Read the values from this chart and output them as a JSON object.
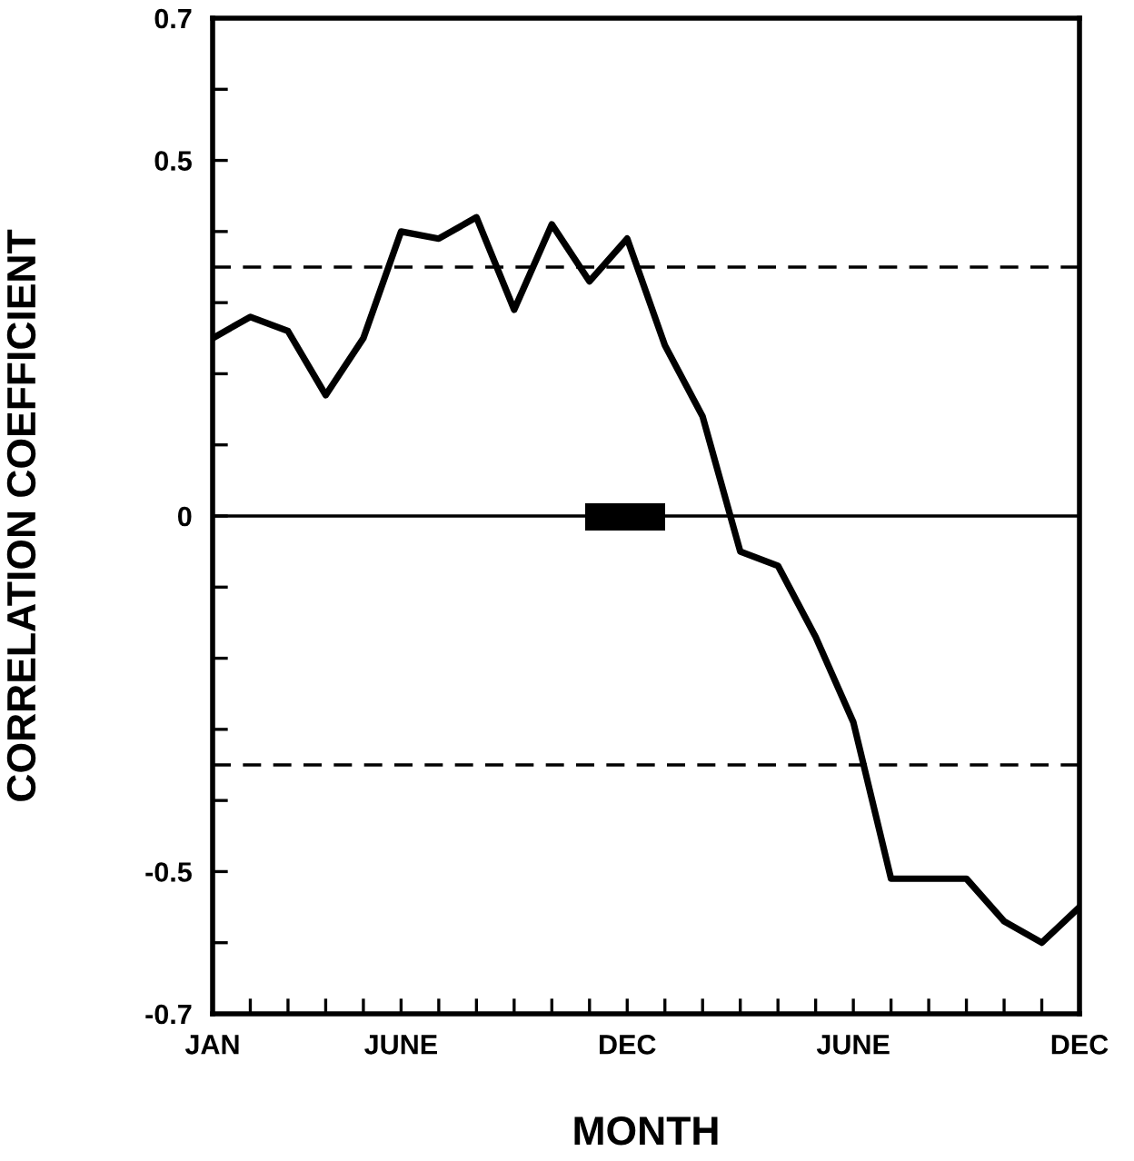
{
  "chart_data": {
    "type": "line",
    "xlabel": "MONTH",
    "ylabel": "CORRELATION COEFFICIENT",
    "categories": [
      "JAN",
      null,
      null,
      null,
      null,
      "JUNE",
      null,
      null,
      null,
      null,
      null,
      "DEC",
      null,
      null,
      null,
      null,
      null,
      "JUNE",
      null,
      null,
      null,
      null,
      null,
      "DEC"
    ],
    "series": [
      {
        "color": "#000000",
        "values": [
          0.25,
          0.28,
          0.26,
          0.17,
          0.25,
          0.4,
          0.39,
          0.42,
          0.29,
          0.41,
          0.33,
          0.39,
          0.24,
          0.14,
          -0.05,
          -0.07,
          -0.17,
          -0.29,
          -0.51,
          -0.51,
          -0.51,
          -0.57,
          -0.6,
          -0.55
        ]
      }
    ],
    "ylim": [
      -0.7,
      0.7
    ],
    "yticks": [
      {
        "value": -0.7,
        "label": "-0.7"
      },
      {
        "value": -0.6,
        "label": null
      },
      {
        "value": -0.5,
        "label": "-0.5"
      },
      {
        "value": -0.4,
        "label": null
      },
      {
        "value": -0.3,
        "label": null
      },
      {
        "value": -0.2,
        "label": null
      },
      {
        "value": -0.1,
        "label": null
      },
      {
        "value": 0,
        "label": "0"
      },
      {
        "value": 0.1,
        "label": null
      },
      {
        "value": 0.2,
        "label": null
      },
      {
        "value": 0.3,
        "label": null
      },
      {
        "value": 0.4,
        "label": null
      },
      {
        "value": 0.5,
        "label": "0.5"
      },
      {
        "value": 0.6,
        "label": null
      },
      {
        "value": 0.7,
        "label": "0.7"
      }
    ],
    "ref_lines": [
      {
        "axis": "y",
        "value": 0.35,
        "line_style": "dashed",
        "color": "#000000"
      },
      {
        "axis": "y",
        "value": 0,
        "line_style": "solid",
        "color": "#000000"
      },
      {
        "axis": "y",
        "value": -0.35,
        "line_style": "dashed",
        "color": "#000000"
      }
    ],
    "grid": false,
    "legend": false,
    "marker": "none",
    "line_style": "solid"
  }
}
